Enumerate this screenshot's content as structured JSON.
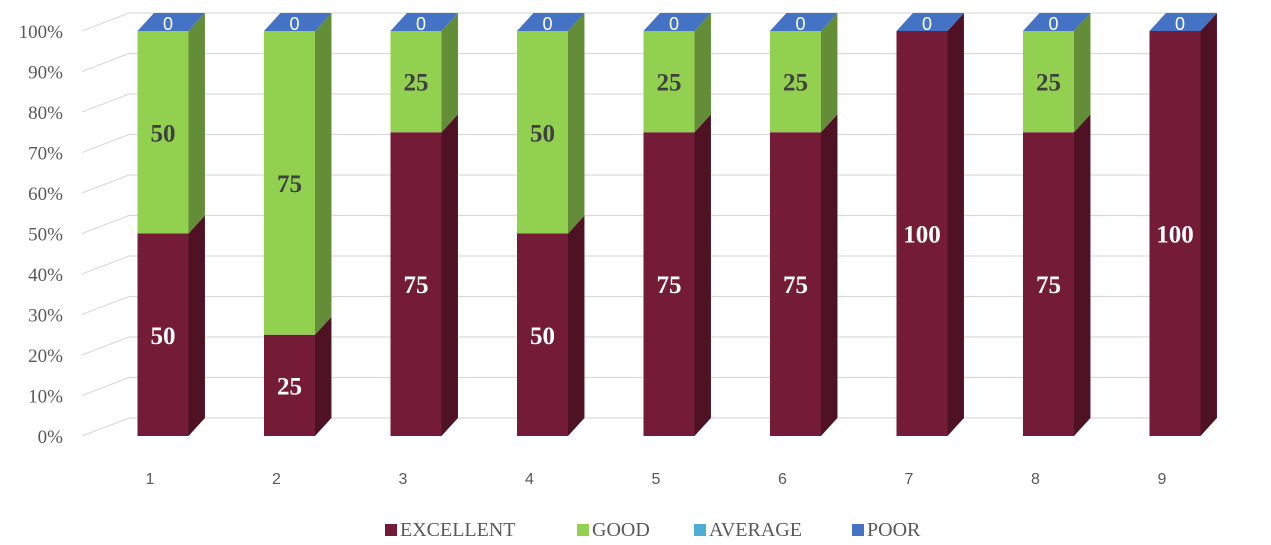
{
  "chart_data": {
    "type": "bar",
    "stacked": true,
    "percent_stacked": true,
    "three_d": true,
    "categories": [
      "1",
      "2",
      "3",
      "4",
      "5",
      "6",
      "7",
      "8",
      "9"
    ],
    "series": [
      {
        "name": "EXCELLENT",
        "color": "#741b37",
        "values": [
          50,
          25,
          75,
          50,
          75,
          75,
          100,
          75,
          100
        ]
      },
      {
        "name": "GOOD",
        "color": "#92d050",
        "values": [
          50,
          75,
          25,
          50,
          25,
          25,
          0,
          25,
          0
        ]
      },
      {
        "name": "AVERAGE",
        "color": "#4badd8",
        "values": [
          0,
          0,
          0,
          0,
          0,
          0,
          0,
          0,
          0
        ]
      },
      {
        "name": "POOR",
        "color": "#4472c4",
        "values": [
          0,
          0,
          0,
          0,
          0,
          0,
          0,
          0,
          0
        ]
      }
    ],
    "y_ticks": [
      "0%",
      "10%",
      "20%",
      "30%",
      "40%",
      "50%",
      "60%",
      "70%",
      "80%",
      "90%",
      "100%"
    ],
    "ylim": [
      0,
      100
    ],
    "grid": true,
    "legend": "bottom",
    "title": "",
    "xlabel": "",
    "ylabel": ""
  }
}
